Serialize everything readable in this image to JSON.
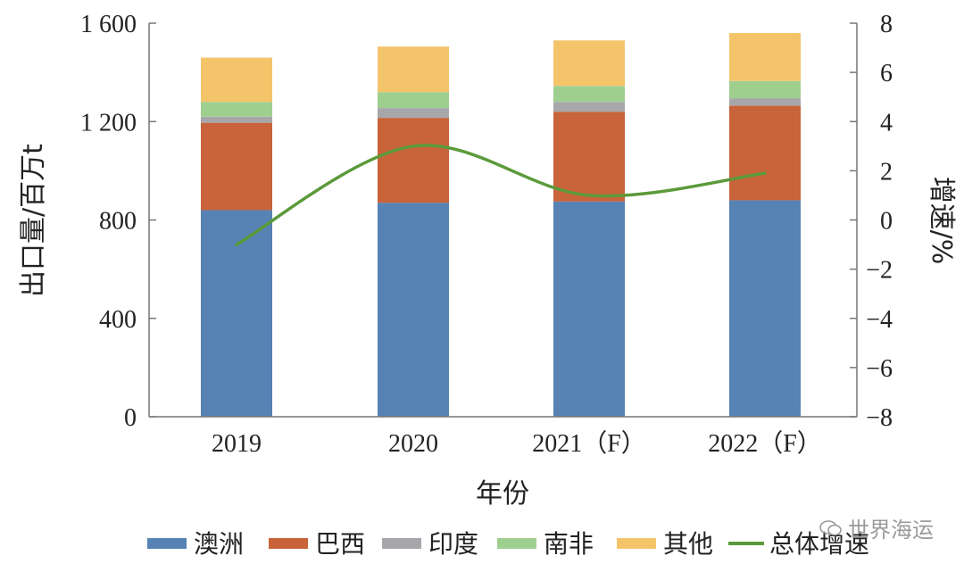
{
  "chart_data": {
    "type": "bar",
    "stacked": true,
    "categories": [
      "2019",
      "2020",
      "2021（F）",
      "2022（F）"
    ],
    "series": [
      {
        "name": "澳洲",
        "color": "#5682b4",
        "values": [
          840,
          870,
          875,
          880
        ]
      },
      {
        "name": "巴西",
        "color": "#c8633a",
        "values": [
          355,
          345,
          365,
          385
        ]
      },
      {
        "name": "印度",
        "color": "#a7a7ab",
        "values": [
          25,
          40,
          40,
          30
        ]
      },
      {
        "name": "南非",
        "color": "#9fcf8f",
        "values": [
          60,
          65,
          65,
          70
        ]
      },
      {
        "name": "其他",
        "color": "#f4c46b",
        "values": [
          180,
          185,
          185,
          195
        ]
      }
    ],
    "line_series": {
      "name": "总体增速",
      "color": "#5b9a3a",
      "values": [
        -1.0,
        3.0,
        1.0,
        1.9
      ],
      "axis": "right"
    },
    "xlabel": "年份",
    "ylabel": "出口量/百万t",
    "y2label": "增速/%",
    "ylim": [
      0,
      1600
    ],
    "yticks": [
      "0",
      "400",
      "800",
      "1 200",
      "1 600"
    ],
    "ytick_values": [
      0,
      400,
      800,
      1200,
      1600
    ],
    "y2lim": [
      -8,
      8
    ],
    "y2ticks": [
      "−8",
      "−6",
      "−4",
      "−2",
      "0",
      "2",
      "4",
      "6",
      "8"
    ],
    "y2tick_values": [
      -8,
      -6,
      -4,
      -2,
      0,
      2,
      4,
      6,
      8
    ],
    "grid": false,
    "legend_position": "bottom"
  },
  "watermark": {
    "text": "世界海运"
  }
}
